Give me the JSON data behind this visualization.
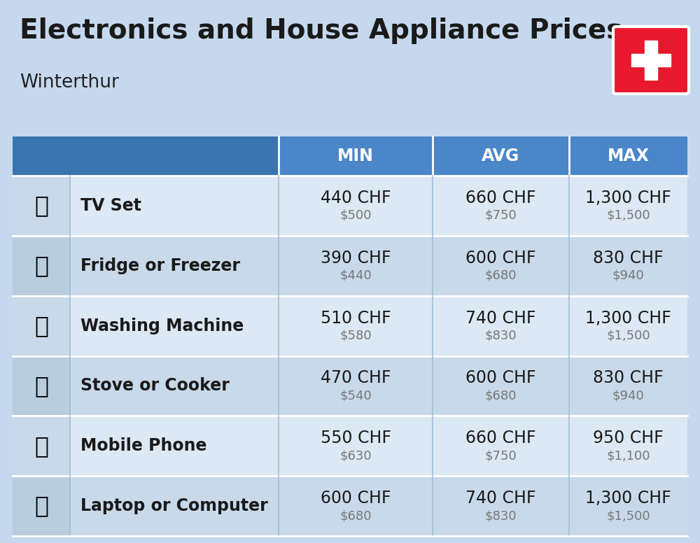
{
  "title": "Electronics and House Appliance Prices",
  "subtitle": "Winterthur",
  "bg_color": "#c5d8ed",
  "header_bg_color": "#4a86c8",
  "header_bg_dark": "#3a75b0",
  "header_text_color": "#ffffff",
  "row_bg_light": "#dce8f3",
  "row_bg_dark": "#c8d9ea",
  "icon_bg_light": "#c8d9ea",
  "icon_bg_dark": "#b8cede",
  "col_divider_color": "#a0bed4",
  "row_divider_color": "#ffffff",
  "swiss_flag_color": "#e8192c",
  "columns": [
    "MIN",
    "AVG",
    "MAX"
  ],
  "rows": [
    {
      "label": "TV Set",
      "min_chf": "440 CHF",
      "min_usd": "$500",
      "avg_chf": "660 CHF",
      "avg_usd": "$750",
      "max_chf": "1,300 CHF",
      "max_usd": "$1,500"
    },
    {
      "label": "Fridge or Freezer",
      "min_chf": "390 CHF",
      "min_usd": "$440",
      "avg_chf": "600 CHF",
      "avg_usd": "$680",
      "max_chf": "830 CHF",
      "max_usd": "$940"
    },
    {
      "label": "Washing Machine",
      "min_chf": "510 CHF",
      "min_usd": "$580",
      "avg_chf": "740 CHF",
      "avg_usd": "$830",
      "max_chf": "1,300 CHF",
      "max_usd": "$1,500"
    },
    {
      "label": "Stove or Cooker",
      "min_chf": "470 CHF",
      "min_usd": "$540",
      "avg_chf": "600 CHF",
      "avg_usd": "$680",
      "max_chf": "830 CHF",
      "max_usd": "$940"
    },
    {
      "label": "Mobile Phone",
      "min_chf": "550 CHF",
      "min_usd": "$630",
      "avg_chf": "660 CHF",
      "avg_usd": "$750",
      "max_chf": "950 CHF",
      "max_usd": "$1,100"
    },
    {
      "label": "Laptop or Computer",
      "min_chf": "600 CHF",
      "min_usd": "$680",
      "avg_chf": "740 CHF",
      "avg_usd": "$830",
      "max_chf": "1,300 CHF",
      "max_usd": "$1,500"
    }
  ],
  "icon_labels": [
    "📺",
    "🍽",
    "🧹",
    "🔥",
    "📱",
    "💻"
  ],
  "title_fontsize": 28,
  "subtitle_fontsize": 19,
  "header_fontsize": 17,
  "label_fontsize": 17,
  "value_fontsize": 17,
  "usd_fontsize": 13
}
